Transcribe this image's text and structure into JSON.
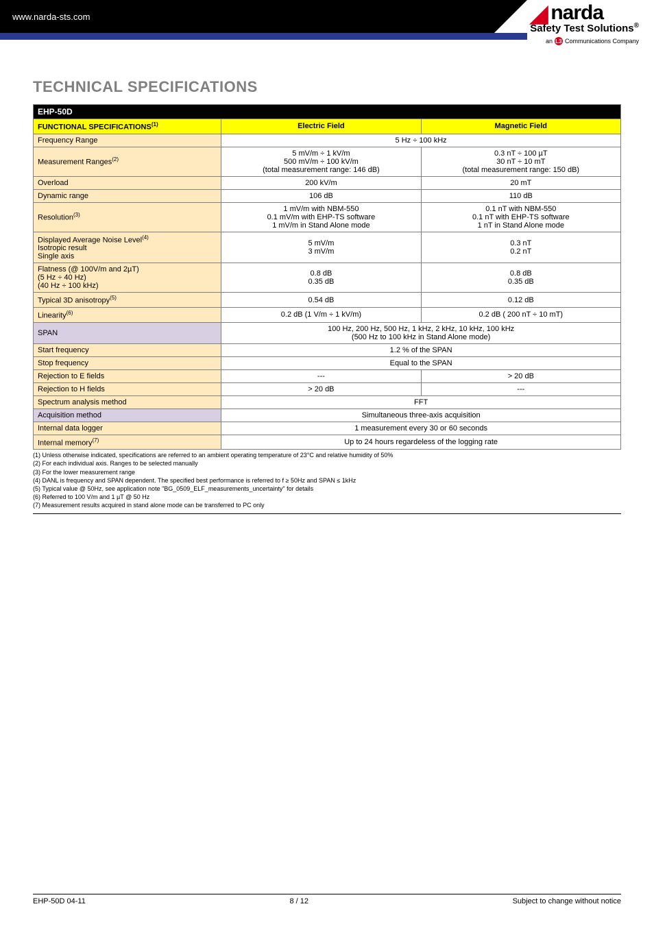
{
  "header": {
    "url": "www.narda-sts.com",
    "brand": "narda",
    "tagline": "Safety Test Solutions",
    "reg": "®",
    "sub": "an",
    "l3": "L3",
    "sub2": "Communications Company"
  },
  "title": "TECHNICAL SPECIFICATIONS",
  "table": {
    "model": "EHP-50D",
    "func_hdr": "FUNCTIONAL SPECIFICATIONS",
    "func_sup": "(1)",
    "col_e": "Electric Field",
    "col_m": "Magnetic Field",
    "rows": [
      {
        "label": "Frequency Range",
        "span": "5 Hz ÷ 100 kHz"
      },
      {
        "label": "Measurement Ranges",
        "sup": "(2)",
        "e": "5 mV/m ÷ 1 kV/m\n500 mV/m ÷ 100 kV/m\n(total measurement range: 146 dB)",
        "m": "0.3 nT ÷ 100 µT\n30 nT ÷ 10 mT\n(total measurement range: 150 dB)"
      },
      {
        "label": "Overload",
        "e": "200 kV/m",
        "m": "20 mT"
      },
      {
        "label": "Dynamic range",
        "e": "106 dB",
        "m": "110 dB"
      },
      {
        "label": "Resolution",
        "sup": "(3)",
        "e": "1 mV/m with NBM-550\n0.1 mV/m with EHP-TS software\n1 mV/m in Stand Alone mode",
        "m": "0.1 nT with NBM-550\n0.1 nT with EHP-TS software\n1 nT in Stand Alone mode"
      },
      {
        "label": "Displayed Average Noise Level(4)\nIsotropic result\nSingle axis",
        "multiline_label": true,
        "label_lines": [
          "Displayed Average Noise Level",
          "Isotropic result",
          "Single axis"
        ],
        "label_sup_line0": "(4)",
        "e": "5 mV/m\n3 mV/m",
        "m": "0.3 nT\n0.2 nT"
      },
      {
        "label_lines": [
          "Flatness (@ 100V/m and 2µT)",
          "(5 Hz ÷ 40 Hz)",
          "(40 Hz ÷ 100 kHz)"
        ],
        "e": "0.8 dB\n0.35 dB",
        "m": "0.8 dB\n0.35 dB"
      },
      {
        "label": "Typical 3D anisotropy",
        "sup": "(5)",
        "e": "0.54 dB",
        "m": "0.12 dB"
      },
      {
        "label": "Linearity",
        "sup": "(6)",
        "e": "0.2 dB (1 V/m ÷ 1 kV/m)",
        "m": "0.2 dB ( 200 nT ÷ 10 mT)"
      },
      {
        "label": "SPAN",
        "label_bg": "#d9cfe3",
        "span": "100 Hz, 200 Hz, 500 Hz, 1 kHz, 2 kHz, 10 kHz, 100 kHz\n(500 Hz to 100 kHz in Stand Alone mode)"
      },
      {
        "label": "Start frequency",
        "span": "1.2 % of the SPAN"
      },
      {
        "label": "Stop frequency",
        "span": "Equal to the SPAN"
      },
      {
        "label": "Rejection to E fields",
        "e": "---",
        "m": "> 20 dB"
      },
      {
        "label": "Rejection to H fields",
        "e": "> 20 dB",
        "m": "---"
      },
      {
        "label": "Spectrum analysis method",
        "span": "FFT"
      },
      {
        "label": "Acquisition method",
        "label_bg": "#d9cfe3",
        "span": "Simultaneous three-axis acquisition"
      },
      {
        "label": "Internal data logger",
        "span": "1 measurement every 30 or 60 seconds"
      },
      {
        "label": "Internal memory",
        "sup": "(7)",
        "span": "Up to 24 hours regardeless of the logging rate"
      }
    ]
  },
  "footnotes": [
    "(1) Unless otherwise indicated,  specifications are referred to an ambient operating temperature of 23°C and relative humidity of 50%",
    "(2) For each individual axis. Ranges to be selected manually",
    "(3) For the lower measurement range",
    "(4) DANL is frequency and SPAN dependent. The specified best performance is referred to f ≥ 50Hz and SPAN ≤ 1kHz",
    "(5) Typical value @ 50Hz, see application note \"BG_0509_ELF_measurements_uncertainty\" for details",
    "(6) Referred to 100 V/m and 1 µT @ 50 Hz",
    "(7) Measurement results acquired in stand alone mode can be transferred to PC only"
  ],
  "footer": {
    "left": "EHP-50D 04-11",
    "center": "8 / 12",
    "right": "Subject to change without notice"
  },
  "colors": {
    "topbar": "#000000",
    "bluebar": "#2a3a8f",
    "yellow": "#ffff00",
    "label_bg": "#ffe9bf",
    "span_bg": "#d9cfe3",
    "title_gray": "#808080"
  }
}
